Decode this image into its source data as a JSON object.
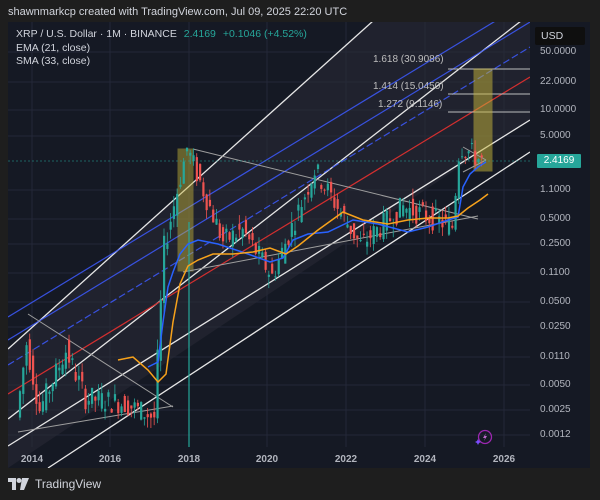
{
  "credit": "shawnmarkcp created with TradingView.com, Jul 09, 2025 22:20 UTC",
  "legend": {
    "symbol": "XRP / U.S. Dollar · 1M · BINANCE",
    "price": "2.4169",
    "change": "+0.1046 (+4.52%)",
    "ema": "EMA (21, close)",
    "sma": "SMA (33, close)"
  },
  "price_axis": {
    "currency": "USD",
    "current_price": "2.4169",
    "ticks": [
      "50.0000",
      "22.0000",
      "10.0000",
      "5.0000",
      "1.1000",
      "0.5000",
      "0.2500",
      "0.1100",
      "0.0500",
      "0.0250",
      "0.0110",
      "0.0050",
      "0.0025",
      "0.0012"
    ]
  },
  "time_axis": {
    "ticks": [
      "2014",
      "2016",
      "2018",
      "2020",
      "2022",
      "2024",
      "2026"
    ]
  },
  "fib_labels": [
    {
      "level": "1.618",
      "value": "30.9086",
      "label": "1.618 (30.9086)"
    },
    {
      "level": "1.414",
      "value": "15.0450",
      "label": "1.414 (15.0450)"
    },
    {
      "level": "1.272",
      "value": "9.1146",
      "label": "1.272 (9.1146)"
    }
  ],
  "footer": {
    "brand": "TradingView"
  },
  "colors": {
    "background": "#151924",
    "up": "#26a69a",
    "down": "#ef5350",
    "ema": "#2962ff",
    "sma": "#f7a21b",
    "channel_outer": "#e8e8e8",
    "channel_inner": "#3d5afe",
    "channel_mid": "#d32f2f",
    "highlight": "#c9b83a"
  },
  "chart_data": {
    "type": "candlestick",
    "title": "XRP / U.S. Dollar · 1M · BINANCE",
    "scale": "log",
    "ylabel": "USD",
    "ylim": [
      0.001,
      70
    ],
    "x_range": [
      "2013-06",
      "2026-08"
    ],
    "ytick_labels": [
      "50.0000",
      "22.0000",
      "10.0000",
      "5.0000",
      "2.4169",
      "1.1000",
      "0.5000",
      "0.2500",
      "0.1100",
      "0.0500",
      "0.0250",
      "0.0110",
      "0.0050",
      "0.0025",
      "0.0012"
    ],
    "xtick_labels": [
      "2014",
      "2016",
      "2018",
      "2020",
      "2022",
      "2024",
      "2026"
    ],
    "last_price": 2.4169,
    "change": 0.1046,
    "change_pct": 4.52,
    "approx_price_points": [
      {
        "date": "2013-09",
        "price": 0.005
      },
      {
        "date": "2013-12",
        "price": 0.03
      },
      {
        "date": "2014-04",
        "price": 0.006
      },
      {
        "date": "2014-12",
        "price": 0.025
      },
      {
        "date": "2015-06",
        "price": 0.008
      },
      {
        "date": "2016-06",
        "price": 0.007
      },
      {
        "date": "2017-03",
        "price": 0.005
      },
      {
        "date": "2017-06",
        "price": 0.3
      },
      {
        "date": "2018-01",
        "price": 3.3
      },
      {
        "date": "2018-12",
        "price": 0.35
      },
      {
        "date": "2019-06",
        "price": 0.45
      },
      {
        "date": "2020-03",
        "price": 0.15
      },
      {
        "date": "2021-04",
        "price": 1.96
      },
      {
        "date": "2022-06",
        "price": 0.32
      },
      {
        "date": "2023-07",
        "price": 0.8
      },
      {
        "date": "2024-10",
        "price": 0.5
      },
      {
        "date": "2024-12",
        "price": 2.9
      },
      {
        "date": "2025-01",
        "price": 3.4
      },
      {
        "date": "2025-07",
        "price": 2.4169
      }
    ],
    "indicators": [
      {
        "name": "EMA (21, close)",
        "color": "#2962ff"
      },
      {
        "name": "SMA (33, close)",
        "color": "#f7a21b"
      }
    ],
    "annotations": [
      {
        "type": "fib_extension",
        "level": 1.618,
        "price": 30.9086
      },
      {
        "type": "fib_extension",
        "level": 1.414,
        "price": 15.045
      },
      {
        "type": "fib_extension",
        "level": 1.272,
        "price": 9.1146
      },
      {
        "type": "ascending_channel",
        "desc": "parallel log channel from 2014 to 2026"
      },
      {
        "type": "symmetrical_triangles",
        "desc": "2014-2017, 2018-2024, 2025"
      },
      {
        "type": "highlight_box",
        "period": "2017-2018 breakout"
      },
      {
        "type": "highlight_box",
        "period": "2025 projected move to ~30.9"
      }
    ]
  }
}
